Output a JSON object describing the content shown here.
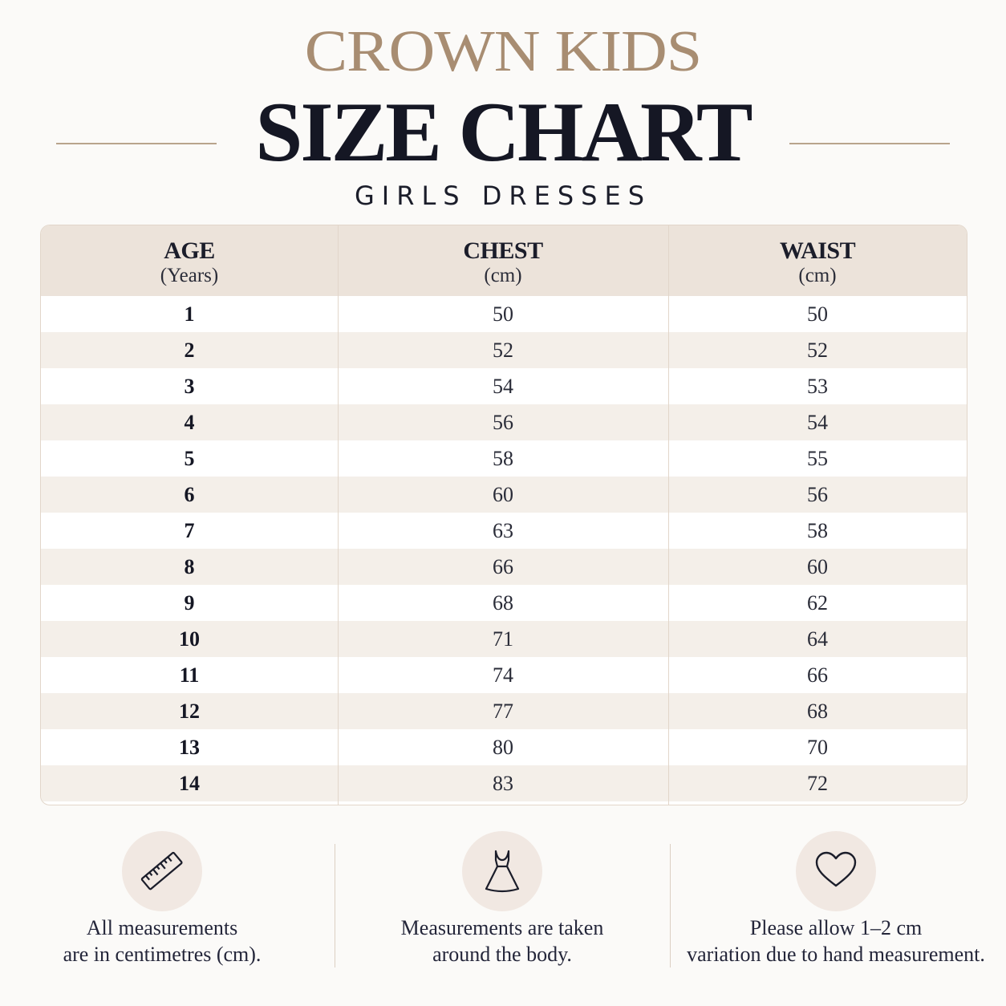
{
  "header": {
    "brand": "CROWN KIDS",
    "title": "SIZE CHART",
    "subtitle": "GIRLS DRESSES"
  },
  "table": {
    "columns": [
      {
        "label": "AGE",
        "unit": "(Years)"
      },
      {
        "label": "CHEST",
        "unit": "(cm)"
      },
      {
        "label": "WAIST",
        "unit": "(cm)"
      }
    ],
    "rows": [
      [
        "1",
        "50",
        "50"
      ],
      [
        "2",
        "52",
        "52"
      ],
      [
        "3",
        "54",
        "53"
      ],
      [
        "4",
        "56",
        "54"
      ],
      [
        "5",
        "58",
        "55"
      ],
      [
        "6",
        "60",
        "56"
      ],
      [
        "7",
        "63",
        "58"
      ],
      [
        "8",
        "66",
        "60"
      ],
      [
        "9",
        "68",
        "62"
      ],
      [
        "10",
        "71",
        "64"
      ],
      [
        "11",
        "74",
        "66"
      ],
      [
        "12",
        "77",
        "68"
      ],
      [
        "13",
        "80",
        "70"
      ],
      [
        "14",
        "83",
        "72"
      ]
    ]
  },
  "notes": [
    {
      "icon": "ruler-icon",
      "line1": "All measurements",
      "line2": "are in centimetres (cm)."
    },
    {
      "icon": "dress-icon",
      "line1": "Measurements are taken",
      "line2": "around the body."
    },
    {
      "icon": "heart-icon",
      "line1": "Please allow 1–2 cm",
      "line2": "variation due to hand measurement."
    }
  ],
  "colors": {
    "brand": "#a88d72",
    "header_bg": "#ece3da",
    "stripe": "#f4efe9",
    "icon_bg": "#f1e8e2",
    "text": "#151724"
  }
}
